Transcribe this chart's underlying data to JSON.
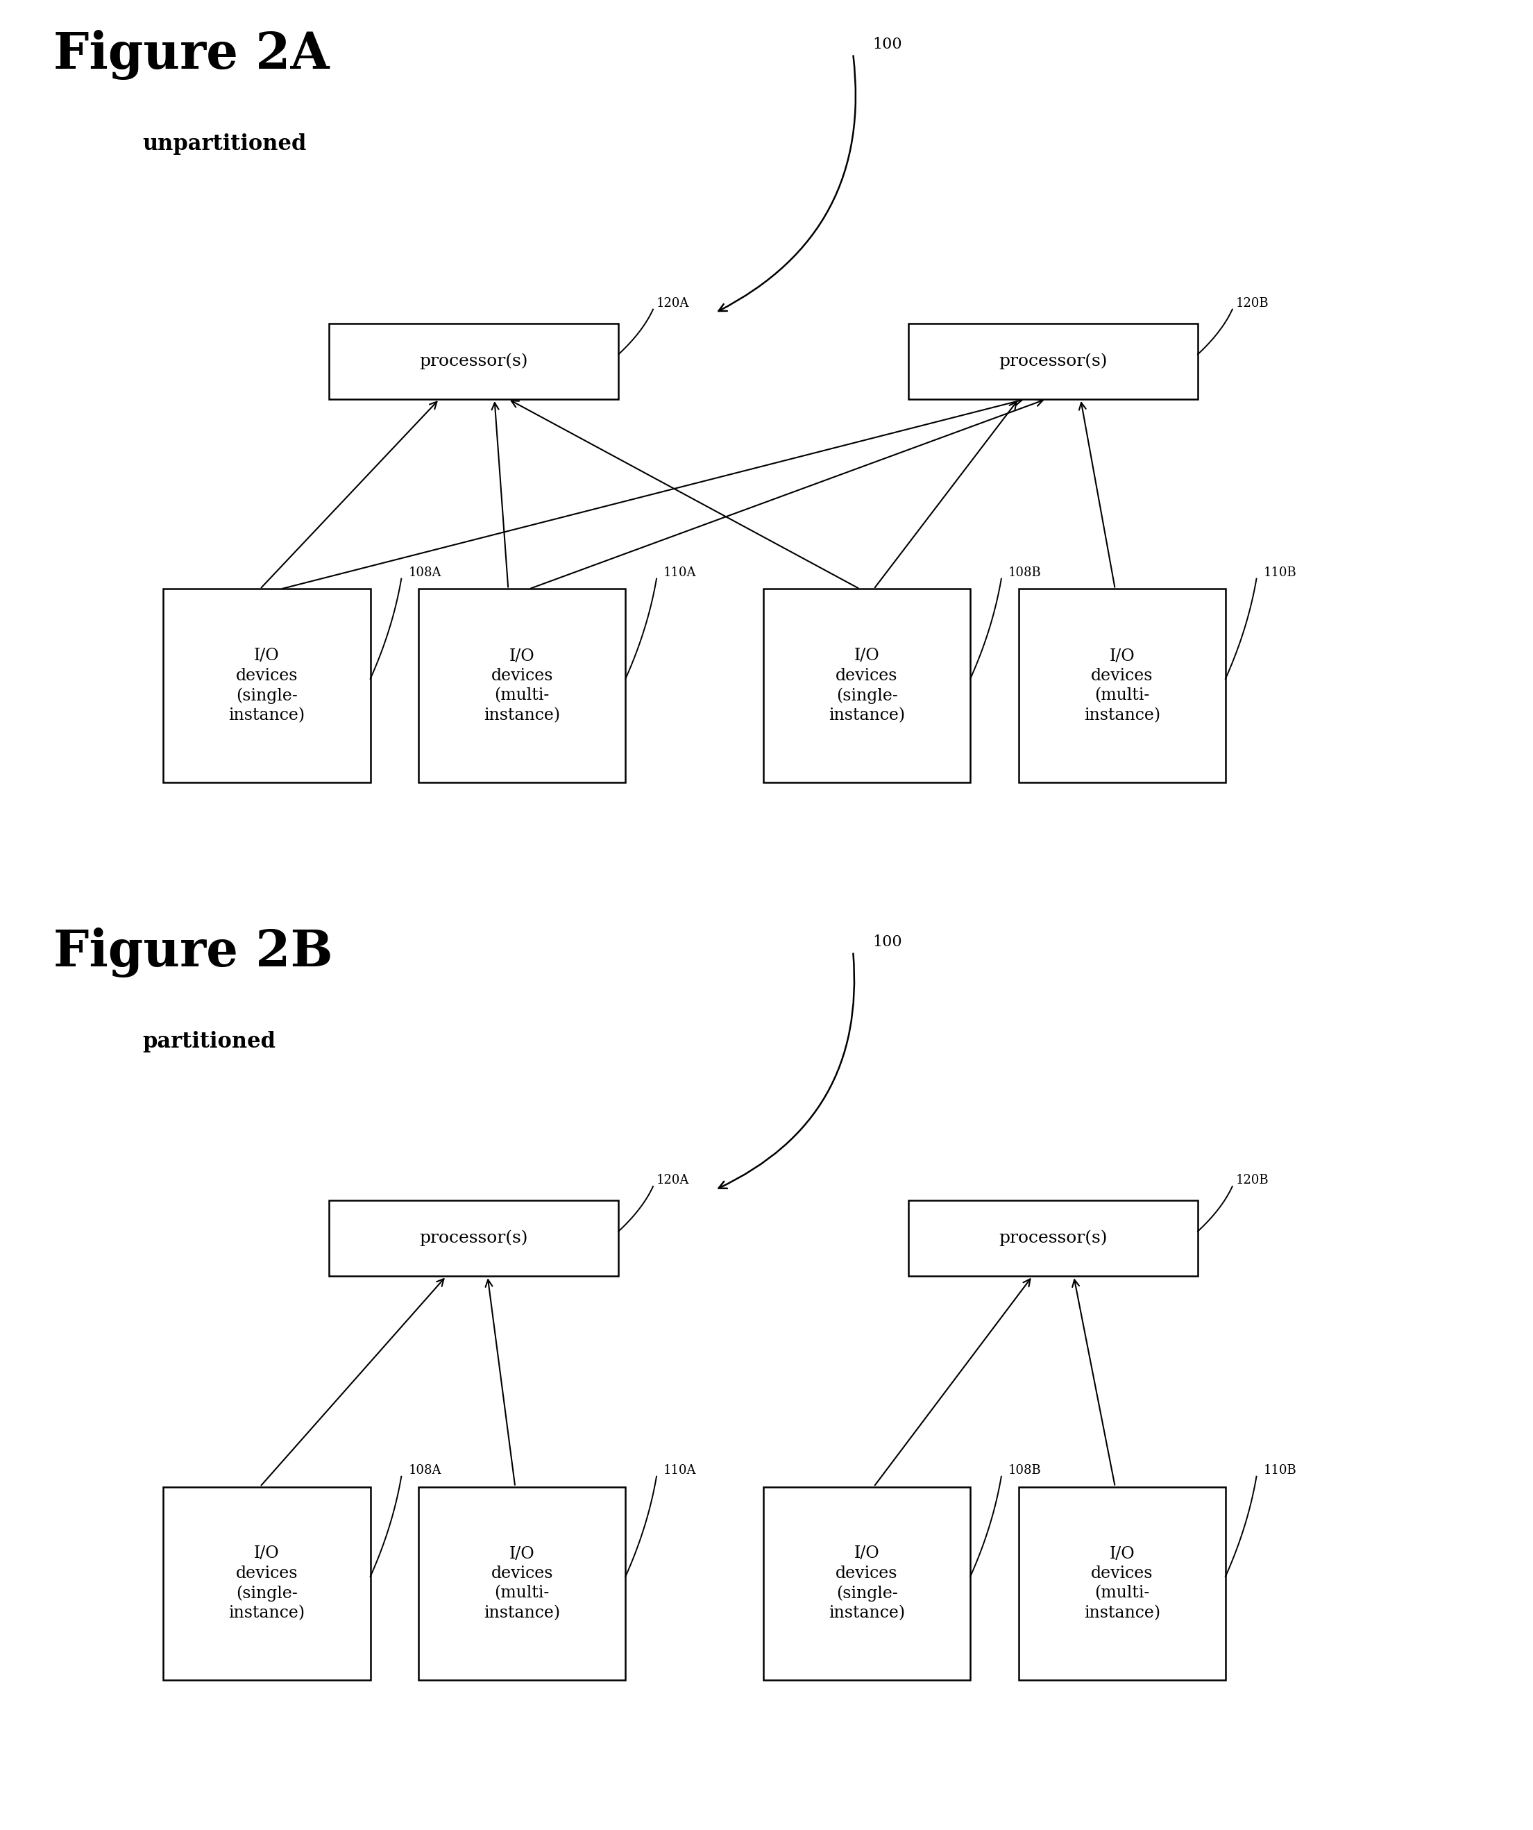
{
  "fig_width": 22.09,
  "fig_height": 26.36,
  "bg_color": "#ffffff",
  "title_2A": "Figure 2A",
  "subtitle_2A": "unpartitioned",
  "title_2B": "Figure 2B",
  "subtitle_2B": "partitioned",
  "label_100": "100",
  "label_120A": "120A",
  "label_120B": "120B",
  "label_108A": "108A",
  "label_110A": "110A",
  "label_108B": "108B",
  "label_110B": "110B",
  "processor_text": "processor(s)",
  "io_single_text": "I/O\ndevices\n(single-\ninstance)",
  "io_multi_text": "I/O\ndevices\n(multi-\ninstance)",
  "title_fontsize": 52,
  "subtitle_fontsize": 22,
  "proc_fontsize": 18,
  "io_fontsize": 17,
  "label_fontsize": 13,
  "ref_fontsize": 16
}
